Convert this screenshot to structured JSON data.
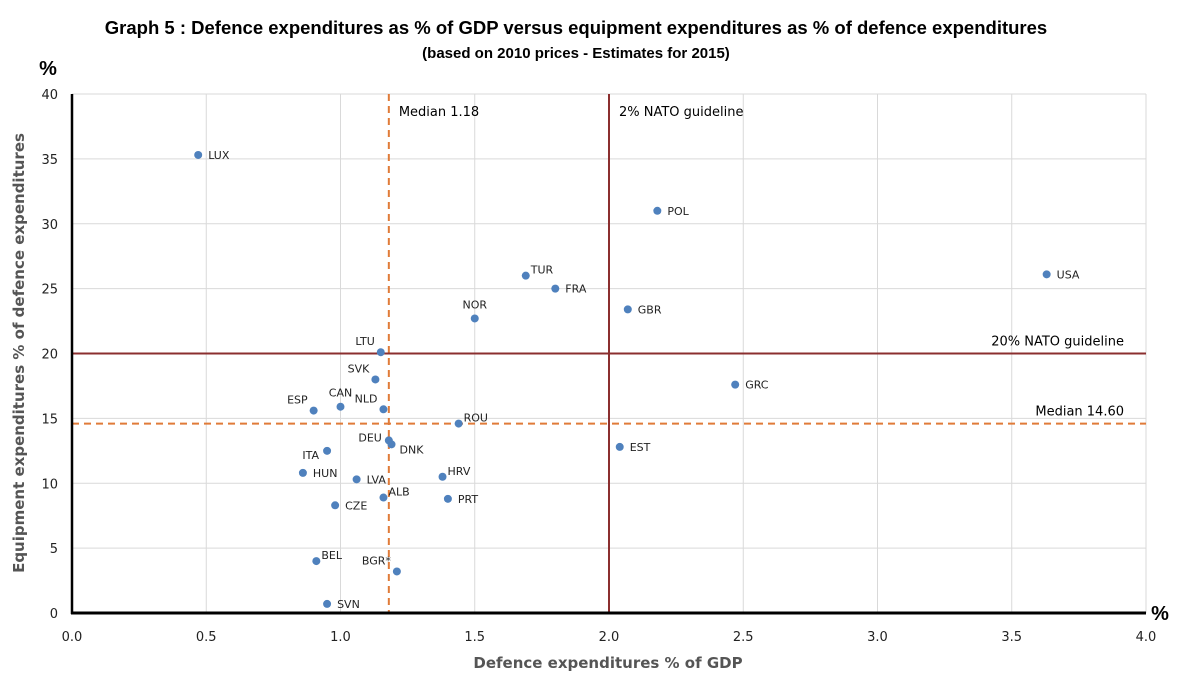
{
  "chart_data": {
    "type": "scatter",
    "title": "Graph 5 : Defence expenditures as % of GDP versus equipment expenditures as % of defence expenditures",
    "subtitle": "(based on 2010 prices - Estimates for 2015)",
    "xlabel": "Defence expenditures % of GDP",
    "ylabel": "Equipment expenditures % of defence expenditures",
    "x_unit": "%",
    "y_unit": "%",
    "xlim": [
      0,
      4
    ],
    "ylim": [
      0,
      40
    ],
    "x_ticks": [
      "0.0",
      "0.5",
      "1.0",
      "1.5",
      "2.0",
      "2.5",
      "3.0",
      "3.5",
      "4.0"
    ],
    "y_ticks": [
      "0",
      "5",
      "10",
      "15",
      "20",
      "25",
      "30",
      "35",
      "40"
    ],
    "grid": true,
    "marker_color": "#4f81bd",
    "reference_lines": [
      {
        "orientation": "vertical",
        "value": 1.18,
        "style": "dashed",
        "color": "#e07b39",
        "label": "Median 1.18"
      },
      {
        "orientation": "vertical",
        "value": 2.0,
        "style": "solid",
        "color": "#8b2f2f",
        "label": "2% NATO guideline"
      },
      {
        "orientation": "horizontal",
        "value": 20,
        "style": "solid",
        "color": "#8b2f2f",
        "label": "20% NATO guideline"
      },
      {
        "orientation": "horizontal",
        "value": 14.6,
        "style": "dashed",
        "color": "#e07b39",
        "label": "Median 14.60"
      }
    ],
    "points": [
      {
        "label": "LUX",
        "x": 0.47,
        "y": 35.3,
        "label_pos": "right"
      },
      {
        "label": "POL",
        "x": 2.18,
        "y": 31.0,
        "label_pos": "right"
      },
      {
        "label": "TUR",
        "x": 1.69,
        "y": 26.0,
        "label_pos": "right-up"
      },
      {
        "label": "USA",
        "x": 3.63,
        "y": 26.1,
        "label_pos": "right"
      },
      {
        "label": "FRA",
        "x": 1.8,
        "y": 25.0,
        "label_pos": "right"
      },
      {
        "label": "GBR",
        "x": 2.07,
        "y": 23.4,
        "label_pos": "right"
      },
      {
        "label": "NOR",
        "x": 1.5,
        "y": 22.7,
        "label_pos": "up"
      },
      {
        "label": "LTU",
        "x": 1.15,
        "y": 20.1,
        "label_pos": "left-up"
      },
      {
        "label": "SVK",
        "x": 1.13,
        "y": 18.0,
        "label_pos": "left-up"
      },
      {
        "label": "GRC",
        "x": 2.47,
        "y": 17.6,
        "label_pos": "right"
      },
      {
        "label": "ESP",
        "x": 0.9,
        "y": 15.6,
        "label_pos": "left-up"
      },
      {
        "label": "CAN",
        "x": 1.0,
        "y": 15.9,
        "label_pos": "up"
      },
      {
        "label": "NLD",
        "x": 1.16,
        "y": 15.7,
        "label_pos": "left-up"
      },
      {
        "label": "ROU",
        "x": 1.44,
        "y": 14.6,
        "label_pos": "right-up"
      },
      {
        "label": "DEU",
        "x": 1.18,
        "y": 13.3,
        "label_pos": "left"
      },
      {
        "label": "DNK",
        "x": 1.19,
        "y": 13.0,
        "label_pos": "right-down"
      },
      {
        "label": "EST",
        "x": 2.04,
        "y": 12.8,
        "label_pos": "right"
      },
      {
        "label": "ITA",
        "x": 0.95,
        "y": 12.5,
        "label_pos": "left-down"
      },
      {
        "label": "HUN",
        "x": 0.86,
        "y": 10.8,
        "label_pos": "right"
      },
      {
        "label": "HRV",
        "x": 1.38,
        "y": 10.5,
        "label_pos": "right-up"
      },
      {
        "label": "LVA",
        "x": 1.06,
        "y": 10.3,
        "label_pos": "right"
      },
      {
        "label": "ALB",
        "x": 1.16,
        "y": 8.9,
        "label_pos": "right-up"
      },
      {
        "label": "PRT",
        "x": 1.4,
        "y": 8.8,
        "label_pos": "right"
      },
      {
        "label": "CZE",
        "x": 0.98,
        "y": 8.3,
        "label_pos": "right"
      },
      {
        "label": "BEL",
        "x": 0.91,
        "y": 4.0,
        "label_pos": "right-up"
      },
      {
        "label": "BGR*",
        "x": 1.21,
        "y": 3.2,
        "label_pos": "left-up"
      },
      {
        "label": "SVN",
        "x": 0.95,
        "y": 0.7,
        "label_pos": "right"
      }
    ]
  }
}
